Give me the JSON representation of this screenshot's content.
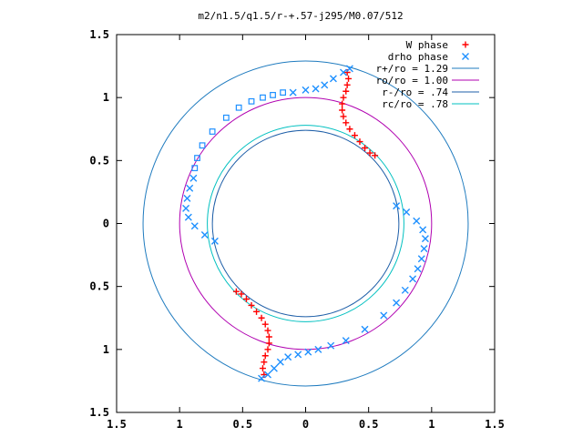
{
  "chart_data": {
    "type": "scatter",
    "title": "m2/n1.5/q1.5/r-+.57-j295/M0.07/512",
    "xlabel": "",
    "ylabel": "",
    "xlim": [
      -1.5,
      1.5
    ],
    "ylim": [
      -1.5,
      1.5
    ],
    "x_ticks": [
      -1.5,
      -1,
      -0.5,
      0,
      0.5,
      1,
      1.5
    ],
    "y_ticks": [
      1.5,
      1,
      0.5,
      0,
      -0.5,
      -1,
      -1.5
    ],
    "x_tick_labels": [
      "1.5",
      "1",
      "0.5",
      "0",
      "0.5",
      "1",
      "1.5"
    ],
    "y_tick_labels": [
      "1.5",
      "1",
      "0.5",
      "0",
      "0.5",
      "1",
      "1.5"
    ],
    "grid": false,
    "legend_position": "top-right",
    "series": [
      {
        "name": "W phase",
        "kind": "points",
        "marker": "plus",
        "color": "#ff0000",
        "points": [
          [
            0.33,
            1.2
          ],
          [
            0.34,
            1.15
          ],
          [
            0.33,
            1.1
          ],
          [
            0.32,
            1.05
          ],
          [
            0.3,
            1.0
          ],
          [
            0.29,
            0.95
          ],
          [
            0.29,
            0.9
          ],
          [
            0.3,
            0.85
          ],
          [
            0.32,
            0.8
          ],
          [
            0.35,
            0.75
          ],
          [
            0.39,
            0.7
          ],
          [
            0.43,
            0.65
          ],
          [
            0.47,
            0.6
          ],
          [
            0.51,
            0.56
          ],
          [
            0.55,
            0.54
          ],
          [
            -0.55,
            -0.54
          ],
          [
            -0.51,
            -0.56
          ],
          [
            -0.47,
            -0.6
          ],
          [
            -0.43,
            -0.65
          ],
          [
            -0.39,
            -0.7
          ],
          [
            -0.35,
            -0.75
          ],
          [
            -0.32,
            -0.8
          ],
          [
            -0.3,
            -0.85
          ],
          [
            -0.29,
            -0.9
          ],
          [
            -0.29,
            -0.95
          ],
          [
            -0.3,
            -1.0
          ],
          [
            -0.32,
            -1.05
          ],
          [
            -0.33,
            -1.1
          ],
          [
            -0.34,
            -1.15
          ],
          [
            -0.33,
            -1.2
          ]
        ]
      },
      {
        "name": "drho phase",
        "kind": "points",
        "marker": "x",
        "color": "#1e90ff",
        "points": [
          [
            0.72,
            0.14
          ],
          [
            0.8,
            0.09
          ],
          [
            0.88,
            0.02
          ],
          [
            0.93,
            -0.05
          ],
          [
            0.95,
            -0.12
          ],
          [
            0.94,
            -0.2
          ],
          [
            0.92,
            -0.28
          ],
          [
            0.89,
            -0.36
          ],
          [
            0.85,
            -0.44
          ],
          [
            0.79,
            -0.53
          ],
          [
            0.72,
            -0.63
          ],
          [
            0.62,
            -0.73
          ],
          [
            0.47,
            -0.84
          ],
          [
            0.32,
            -0.93
          ],
          [
            0.2,
            -0.97
          ],
          [
            0.1,
            -1.0
          ],
          [
            0.02,
            -1.02
          ],
          [
            -0.06,
            -1.04
          ],
          [
            -0.14,
            -1.06
          ],
          [
            -0.2,
            -1.1
          ],
          [
            -0.25,
            -1.15
          ],
          [
            -0.3,
            -1.2
          ],
          [
            -0.35,
            -1.23
          ],
          [
            0.35,
            1.23
          ],
          [
            0.3,
            1.2
          ],
          [
            0.22,
            1.15
          ],
          [
            0.15,
            1.1
          ],
          [
            0.08,
            1.07
          ],
          [
            0.0,
            1.06
          ],
          [
            -0.1,
            1.04
          ],
          [
            -0.72,
            -0.14
          ],
          [
            -0.8,
            -0.09
          ],
          [
            -0.88,
            -0.02
          ],
          [
            -0.93,
            0.05
          ],
          [
            -0.95,
            0.12
          ],
          [
            -0.94,
            0.2
          ],
          [
            -0.92,
            0.28
          ],
          [
            -0.89,
            0.36
          ]
        ]
      },
      {
        "name": "drho phase (open squares)",
        "kind": "points",
        "marker": "square",
        "color": "#1e90ff",
        "points": [
          [
            -0.18,
            1.04
          ],
          [
            -0.26,
            1.02
          ],
          [
            -0.34,
            1.0
          ],
          [
            -0.43,
            0.97
          ],
          [
            -0.53,
            0.92
          ],
          [
            -0.63,
            0.84
          ],
          [
            -0.74,
            0.73
          ],
          [
            -0.82,
            0.62
          ],
          [
            -0.86,
            0.52
          ],
          [
            -0.88,
            0.44
          ]
        ]
      },
      {
        "name": "r+/ro = 1.29",
        "kind": "circle",
        "radius": 1.29,
        "color": "#1f7bbf"
      },
      {
        "name": "ro/ro = 1.00",
        "kind": "circle",
        "radius": 1.0,
        "color": "#b000b0"
      },
      {
        "name": "r-/ro = .74",
        "kind": "circle",
        "radius": 0.74,
        "color": "#1f5fa8"
      },
      {
        "name": "rc/ro = .78",
        "kind": "circle",
        "radius": 0.78,
        "color": "#00c0c0"
      }
    ],
    "legend": [
      {
        "label": "W phase",
        "marker": "plus",
        "color": "#ff0000"
      },
      {
        "label": "drho phase",
        "marker": "x",
        "color": "#1e90ff"
      },
      {
        "label": "r+/ro = 1.29",
        "marker": "line",
        "color": "#1f7bbf"
      },
      {
        "label": "ro/ro = 1.00",
        "marker": "line",
        "color": "#b000b0"
      },
      {
        "label": "r-/ro = .74",
        "marker": "line",
        "color": "#1f5fa8"
      },
      {
        "label": "rc/ro = .78",
        "marker": "line",
        "color": "#00c0c0"
      }
    ]
  }
}
